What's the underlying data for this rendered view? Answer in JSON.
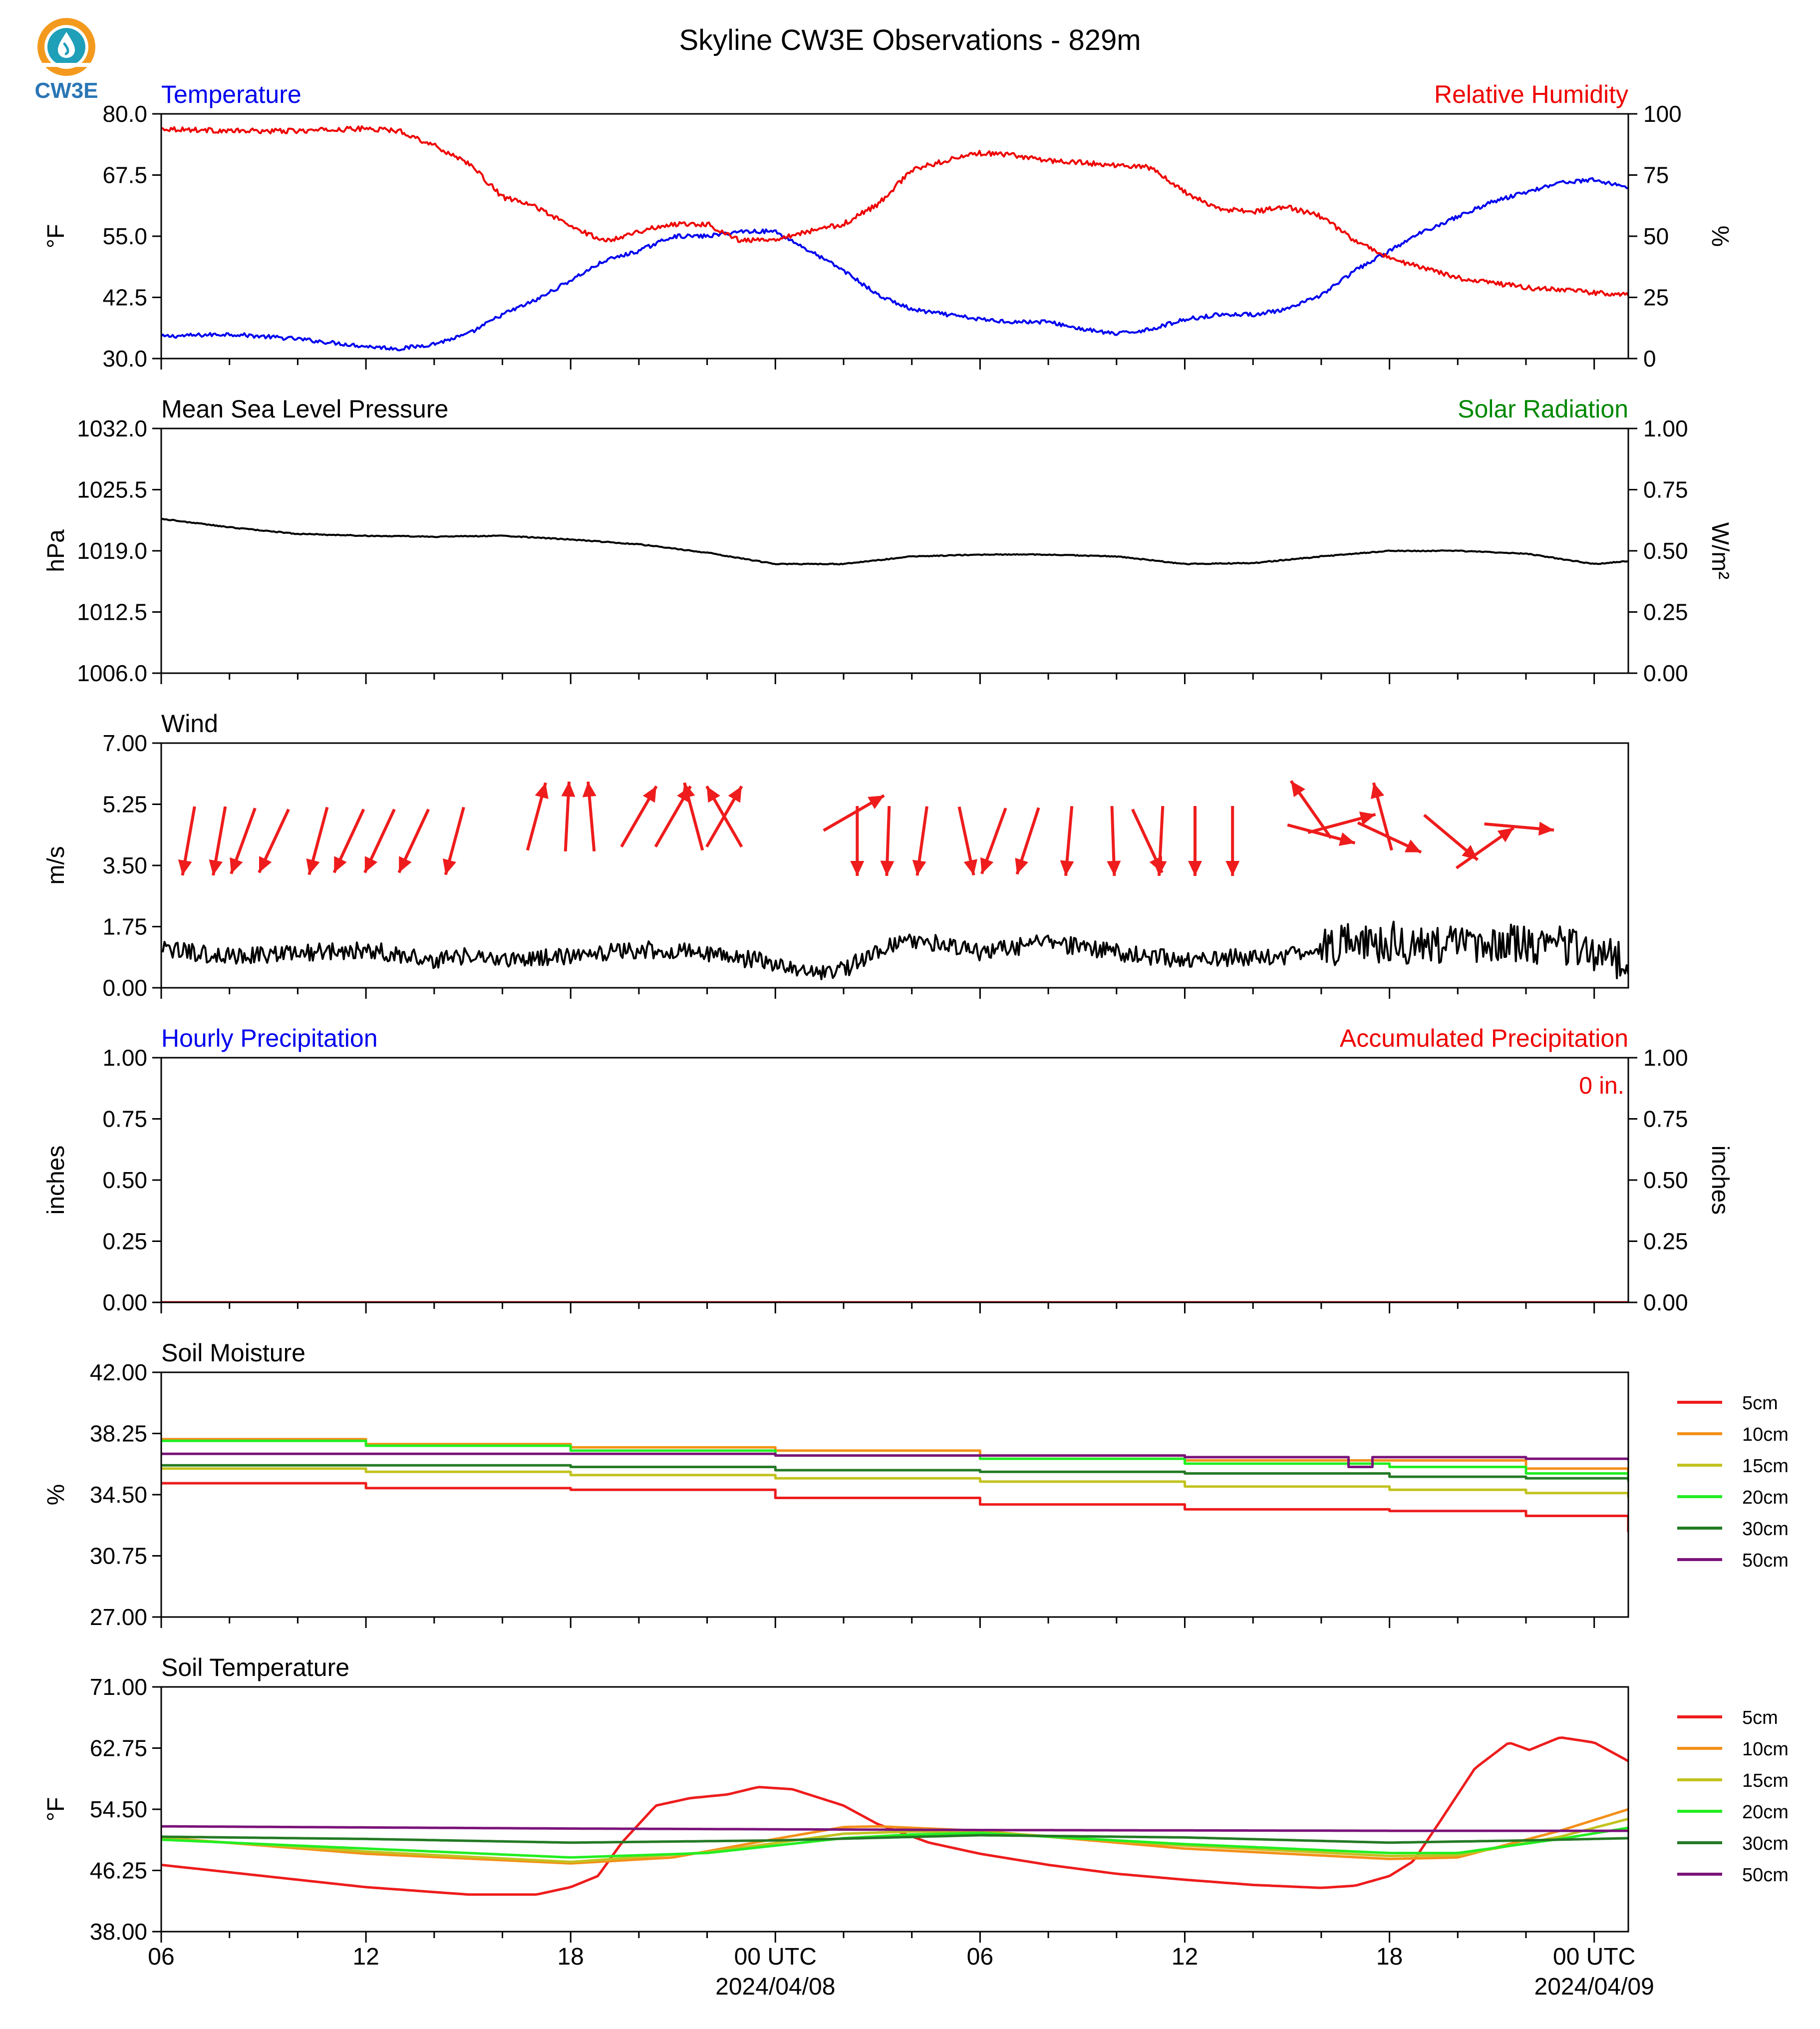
{
  "title": "Skyline CW3E Observations - 829m",
  "logo": {
    "text": "CW3E",
    "colors": [
      "#f39a1e",
      "#1f9fb8",
      "#2a76b5"
    ]
  },
  "x_axis": {
    "range_hours": [
      0,
      43
    ],
    "ticks": [
      {
        "h": 0,
        "label": "06",
        "sub": ""
      },
      {
        "h": 6,
        "label": "12",
        "sub": ""
      },
      {
        "h": 12,
        "label": "18",
        "sub": ""
      },
      {
        "h": 18,
        "label": "00 UTC",
        "sub": "2024/04/08"
      },
      {
        "h": 24,
        "label": "06",
        "sub": ""
      },
      {
        "h": 30,
        "label": "12",
        "sub": ""
      },
      {
        "h": 36,
        "label": "18",
        "sub": ""
      },
      {
        "h": 42,
        "label": "00 UTC",
        "sub": "2024/04/09"
      }
    ]
  },
  "chart_data": [
    {
      "id": "temp_rh",
      "type": "line",
      "title_left": "Temperature",
      "title_left_color": "#0000ee",
      "title_right": "Relative Humidity",
      "title_right_color": "#ee0000",
      "ylabel": "°F",
      "ylabel_right": "%",
      "ylim": [
        30,
        80
      ],
      "yticks": [
        "30.0",
        "42.5",
        "55.0",
        "67.5",
        "80.0"
      ],
      "ylim_right": [
        0,
        100
      ],
      "yticks_right": [
        "0",
        "25",
        "50",
        "75",
        "100"
      ],
      "series": [
        {
          "axis": "left",
          "color": "#0000ee",
          "noise": 0.4,
          "x": [
            0,
            2,
            4,
            6,
            7,
            8,
            9,
            10,
            11,
            12,
            13,
            14,
            15,
            16,
            17,
            18,
            19,
            20,
            21,
            22,
            23,
            24,
            25,
            26,
            27,
            28,
            29,
            30,
            31,
            32,
            33,
            34,
            35,
            36,
            37,
            38,
            39,
            40,
            41,
            42,
            43
          ],
          "y": [
            34.5,
            35,
            34,
            32.5,
            32,
            33,
            35,
            39,
            42,
            46,
            50,
            52,
            55,
            55,
            56,
            56,
            52,
            48,
            43,
            40,
            39,
            38,
            37.5,
            37.5,
            36,
            35,
            36,
            38,
            39,
            39,
            40,
            43,
            48,
            52,
            56,
            59,
            62,
            64,
            66,
            66.5,
            65
          ]
        },
        {
          "axis": "right",
          "color": "#ee0000",
          "noise": 1.0,
          "x": [
            0,
            2,
            4,
            6,
            7,
            8,
            9,
            10,
            11,
            12,
            13,
            14,
            15,
            16,
            17,
            18,
            19,
            20,
            21,
            22,
            23,
            24,
            25,
            26,
            27,
            28,
            29,
            30,
            31,
            32,
            33,
            34,
            35,
            36,
            37,
            38,
            39,
            40,
            41,
            42,
            43
          ],
          "y": [
            94,
            93,
            93,
            94,
            93,
            87,
            80,
            66,
            62,
            54,
            48,
            52,
            55,
            55,
            48,
            49,
            52,
            55,
            63,
            77,
            81,
            84,
            83,
            81,
            80,
            79,
            78,
            68,
            61,
            60,
            62,
            58,
            48,
            41,
            37,
            33,
            31,
            29,
            28,
            27,
            26
          ]
        }
      ]
    },
    {
      "id": "pressure",
      "type": "line",
      "title_left": "Mean Sea Level Pressure",
      "title_left_color": "#000000",
      "title_right": "Solar Radiation",
      "title_right_color": "#008800",
      "ylabel": "hPa",
      "ylabel_right": "W/m²",
      "ylim": [
        1006,
        1032
      ],
      "yticks": [
        "1006.0",
        "1012.5",
        "1019.0",
        "1025.5",
        "1032.0"
      ],
      "ylim_right": [
        0,
        1
      ],
      "yticks_right": [
        "0.00",
        "0.25",
        "0.50",
        "0.75",
        "1.00"
      ],
      "series": [
        {
          "axis": "left",
          "color": "#000000",
          "noise": 0.05,
          "x": [
            0,
            2,
            4,
            6,
            8,
            10,
            12,
            14,
            16,
            18,
            20,
            22,
            24,
            26,
            28,
            30,
            32,
            34,
            36,
            38,
            40,
            42,
            43
          ],
          "y": [
            1022.4,
            1021.5,
            1020.8,
            1020.6,
            1020.5,
            1020.6,
            1020.2,
            1019.7,
            1018.8,
            1017.6,
            1017.6,
            1018.4,
            1018.6,
            1018.6,
            1018.4,
            1017.6,
            1017.7,
            1018.4,
            1019.0,
            1019.0,
            1018.7,
            1017.6,
            1017.9
          ]
        }
      ]
    },
    {
      "id": "wind",
      "type": "line",
      "title_left": "Wind",
      "title_left_color": "#000000",
      "ylabel": "m/s",
      "ylim": [
        0,
        7
      ],
      "yticks": [
        "0.00",
        "1.75",
        "3.50",
        "5.25",
        "7.00"
      ],
      "series": [
        {
          "axis": "left",
          "color": "#000000",
          "noise": 0.25,
          "x": [
            0,
            2,
            4,
            6,
            8,
            9,
            10,
            12,
            14,
            16,
            18,
            19,
            20,
            21,
            22,
            24,
            26,
            28,
            30,
            32,
            33,
            34,
            36,
            38,
            40,
            42,
            43
          ],
          "y": [
            1.1,
            0.9,
            1.0,
            1.1,
            0.8,
            0.9,
            0.8,
            0.9,
            1.1,
            1.0,
            0.7,
            0.4,
            0.5,
            1.1,
            1.4,
            1.0,
            1.3,
            1.0,
            0.8,
            0.9,
            0.9,
            1.2,
            1.3,
            1.2,
            1.3,
            1.1,
            0.7
          ]
        }
      ],
      "arrows": [
        {
          "h": 0.8,
          "v": 4.2,
          "dir": 190
        },
        {
          "h": 1.7,
          "v": 4.2,
          "dir": 190
        },
        {
          "h": 2.4,
          "v": 4.2,
          "dir": 200
        },
        {
          "h": 3.3,
          "v": 4.2,
          "dir": 205
        },
        {
          "h": 4.6,
          "v": 4.2,
          "dir": 195
        },
        {
          "h": 5.5,
          "v": 4.2,
          "dir": 205
        },
        {
          "h": 6.4,
          "v": 4.2,
          "dir": 205
        },
        {
          "h": 7.4,
          "v": 4.2,
          "dir": 205
        },
        {
          "h": 8.6,
          "v": 4.2,
          "dir": 195
        },
        {
          "h": 11.0,
          "v": 4.9,
          "dir": 15
        },
        {
          "h": 11.9,
          "v": 4.9,
          "dir": 3
        },
        {
          "h": 12.6,
          "v": 4.9,
          "dir": 355
        },
        {
          "h": 14.0,
          "v": 4.9,
          "dir": 30
        },
        {
          "h": 15.0,
          "v": 4.9,
          "dir": 30
        },
        {
          "h": 15.6,
          "v": 4.9,
          "dir": 345
        },
        {
          "h": 16.5,
          "v": 4.9,
          "dir": 30
        },
        {
          "h": 16.5,
          "v": 4.9,
          "dir": 330
        },
        {
          "h": 20.3,
          "v": 5.0,
          "dir": 60
        },
        {
          "h": 20.4,
          "v": 4.2,
          "dir": 180
        },
        {
          "h": 21.3,
          "v": 4.2,
          "dir": 182
        },
        {
          "h": 22.3,
          "v": 4.2,
          "dir": 188
        },
        {
          "h": 23.6,
          "v": 4.2,
          "dir": 168
        },
        {
          "h": 24.4,
          "v": 4.2,
          "dir": 200
        },
        {
          "h": 25.4,
          "v": 4.2,
          "dir": 198
        },
        {
          "h": 26.6,
          "v": 4.2,
          "dir": 185
        },
        {
          "h": 27.9,
          "v": 4.2,
          "dir": 178
        },
        {
          "h": 28.9,
          "v": 4.2,
          "dir": 155
        },
        {
          "h": 29.3,
          "v": 4.2,
          "dir": 183
        },
        {
          "h": 30.3,
          "v": 4.2,
          "dir": 180
        },
        {
          "h": 31.4,
          "v": 4.2,
          "dir": 180
        },
        {
          "h": 33.7,
          "v": 5.1,
          "dir": 325
        },
        {
          "h": 34.6,
          "v": 4.7,
          "dir": 75
        },
        {
          "h": 35.8,
          "v": 4.9,
          "dir": 345
        },
        {
          "h": 34.0,
          "v": 4.4,
          "dir": 105
        },
        {
          "h": 36.0,
          "v": 4.3,
          "dir": 115
        },
        {
          "h": 37.8,
          "v": 4.3,
          "dir": 130
        },
        {
          "h": 38.8,
          "v": 4.0,
          "dir": 55
        },
        {
          "h": 39.8,
          "v": 4.6,
          "dir": 95
        }
      ]
    },
    {
      "id": "precip",
      "type": "line",
      "title_left": "Hourly Precipitation",
      "title_left_color": "#0000ee",
      "title_right": "Accumulated Precipitation",
      "title_right_color": "#ee0000",
      "ylabel": "inches",
      "ylabel_right": "inches",
      "ylim": [
        0,
        1
      ],
      "yticks": [
        "0.00",
        "0.25",
        "0.50",
        "0.75",
        "1.00"
      ],
      "ylim_right": [
        0,
        1
      ],
      "yticks_right": [
        "0.00",
        "0.25",
        "0.50",
        "0.75",
        "1.00"
      ],
      "annotation": "0 in.",
      "annotation_color": "#ee0000",
      "series": [
        {
          "axis": "left",
          "color": "#ee0000",
          "noise": 0,
          "x": [
            0,
            43
          ],
          "y": [
            0,
            0
          ]
        }
      ]
    },
    {
      "id": "soil_moisture",
      "type": "line",
      "title_left": "Soil Moisture",
      "title_left_color": "#000000",
      "ylabel": "%",
      "ylim": [
        27,
        42
      ],
      "yticks": [
        "27.00",
        "30.75",
        "34.50",
        "38.25",
        "42.00"
      ],
      "legend": true,
      "series": [
        {
          "name": "5cm",
          "color": "#ee1c1c",
          "step": true,
          "x": [
            0,
            6,
            12,
            18,
            24,
            30,
            36,
            40,
            43
          ],
          "y": [
            35.2,
            34.9,
            34.8,
            34.3,
            33.9,
            33.6,
            33.5,
            33.2,
            32.2
          ]
        },
        {
          "name": "10cm",
          "color": "#f39019",
          "step": true,
          "x": [
            0,
            6,
            12,
            18,
            24,
            30,
            36,
            40,
            43
          ],
          "y": [
            37.9,
            37.6,
            37.4,
            37.2,
            36.9,
            36.6,
            36.6,
            36.1,
            35.7
          ]
        },
        {
          "name": "15cm",
          "color": "#c2c21f",
          "step": true,
          "x": [
            0,
            6,
            12,
            18,
            24,
            30,
            36,
            40,
            43
          ],
          "y": [
            36.1,
            35.9,
            35.7,
            35.5,
            35.3,
            35.0,
            34.8,
            34.6,
            34.3
          ]
        },
        {
          "name": "20cm",
          "color": "#22ee22",
          "step": true,
          "x": [
            0,
            6,
            12,
            18,
            24,
            30,
            36,
            40,
            43
          ],
          "y": [
            37.8,
            37.5,
            37.2,
            36.9,
            36.7,
            36.4,
            36.2,
            35.8,
            35.3
          ]
        },
        {
          "name": "30cm",
          "color": "#247a24",
          "step": true,
          "x": [
            0,
            6,
            12,
            18,
            24,
            30,
            36,
            40,
            43
          ],
          "y": [
            36.3,
            36.3,
            36.2,
            36.0,
            35.9,
            35.8,
            35.6,
            35.5,
            35.4
          ]
        },
        {
          "name": "50cm",
          "color": "#7a137a",
          "step": true,
          "x": [
            0,
            6,
            12,
            18,
            24,
            30,
            34.8,
            34.8,
            35.5,
            35.5,
            40,
            43
          ],
          "y": [
            37.0,
            37.0,
            37.0,
            36.9,
            36.9,
            36.8,
            36.8,
            36.2,
            36.2,
            36.8,
            36.7,
            36.6
          ]
        }
      ]
    },
    {
      "id": "soil_temperature",
      "type": "line",
      "title_left": "Soil Temperature",
      "title_left_color": "#000000",
      "ylabel": "°F",
      "ylim": [
        38,
        71
      ],
      "yticks": [
        "38.00",
        "46.25",
        "54.50",
        "62.75",
        "71.00"
      ],
      "legend": true,
      "series": [
        {
          "name": "5cm",
          "color": "#ee1c1c",
          "x": [
            0,
            3,
            6,
            9,
            11,
            12,
            12.8,
            13.5,
            14.5,
            15.5,
            16.6,
            17.5,
            18.5,
            20,
            21,
            22.5,
            24,
            26,
            28,
            30,
            32,
            34,
            35,
            36,
            36.7,
            37.5,
            38.5,
            39.5,
            40.1,
            41,
            42,
            43
          ],
          "y": [
            47,
            45.5,
            44,
            43,
            43,
            44,
            45.5,
            50,
            55,
            56,
            56.5,
            57.5,
            57.2,
            55,
            52.5,
            50,
            48.5,
            47,
            45.8,
            45,
            44.3,
            43.9,
            44.2,
            45.5,
            47.5,
            53,
            60,
            63.5,
            62.5,
            64.2,
            63.5,
            61
          ]
        },
        {
          "name": "10cm",
          "color": "#f39019",
          "x": [
            0,
            6,
            12,
            15,
            18,
            20,
            21,
            24,
            30,
            36,
            38,
            41,
            43
          ],
          "y": [
            50.7,
            48.5,
            47.2,
            48,
            50.5,
            52.1,
            52.2,
            51.6,
            49.2,
            47.8,
            48,
            51.6,
            54.5
          ]
        },
        {
          "name": "15cm",
          "color": "#c2c21f",
          "x": [
            0,
            6,
            12,
            16,
            20,
            22,
            24,
            30,
            36,
            38,
            41,
            43
          ],
          "y": [
            50.6,
            48.8,
            47.4,
            48.7,
            51.2,
            51.5,
            51.5,
            49.6,
            48.2,
            48.3,
            50.8,
            53.2
          ]
        },
        {
          "name": "20cm",
          "color": "#22ee22",
          "x": [
            0,
            6,
            12,
            16,
            20,
            22,
            24,
            30,
            36,
            38,
            41,
            43
          ],
          "y": [
            50.4,
            49.2,
            48.0,
            48.6,
            50.6,
            51.1,
            51.3,
            49.8,
            48.6,
            48.6,
            50.5,
            52.0
          ]
        },
        {
          "name": "30cm",
          "color": "#247a24",
          "x": [
            0,
            6,
            12,
            18,
            24,
            30,
            36,
            40,
            43
          ],
          "y": [
            50.8,
            50.5,
            50.0,
            50.3,
            51.0,
            50.7,
            50.0,
            50.3,
            50.6
          ]
        },
        {
          "name": "50cm",
          "color": "#7a137a",
          "x": [
            0,
            12,
            24,
            36,
            43
          ],
          "y": [
            52.2,
            51.9,
            51.7,
            51.6,
            51.6
          ]
        }
      ]
    }
  ]
}
